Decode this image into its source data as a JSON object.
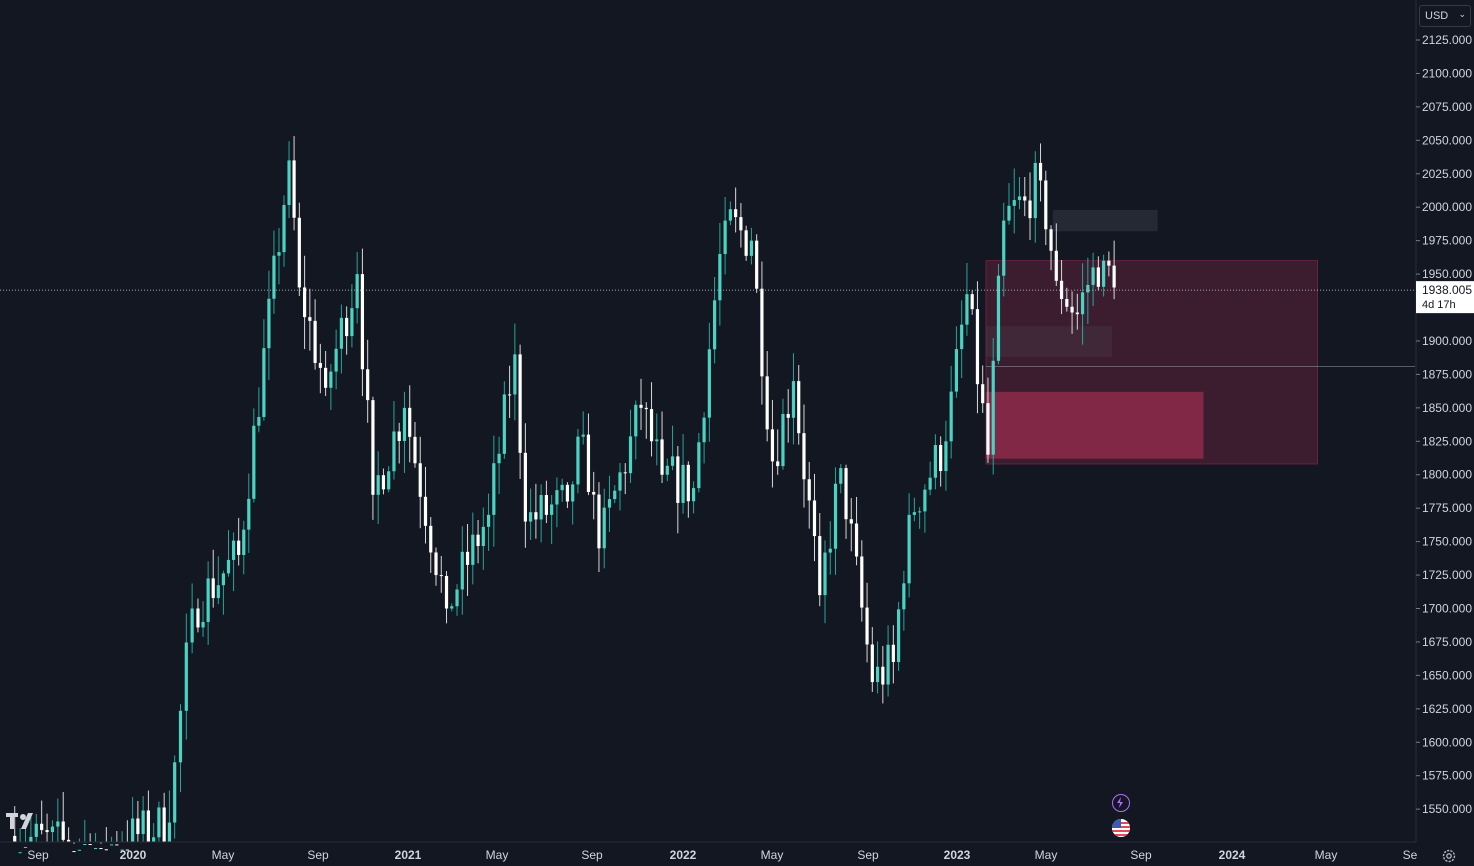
{
  "header": {
    "currency": "USD"
  },
  "price_scale": {
    "tick_labels": [
      "2125.000",
      "2100.000",
      "2075.000",
      "2050.000",
      "2025.000",
      "2000.000",
      "1975.000",
      "1950.000",
      "1925.000",
      "1900.000",
      "1875.000",
      "1850.000",
      "1825.000",
      "1800.000",
      "1775.000",
      "1750.000",
      "1725.000",
      "1700.000",
      "1675.000",
      "1650.000",
      "1625.000",
      "1600.000",
      "1575.000",
      "1550.000"
    ],
    "current_price": "1938.005",
    "countdown": "4d 17h"
  },
  "time_scale": {
    "tick_labels": [
      {
        "label": "Sep",
        "bold": false
      },
      {
        "label": "2020",
        "bold": true
      },
      {
        "label": "May",
        "bold": false
      },
      {
        "label": "Sep",
        "bold": false
      },
      {
        "label": "2021",
        "bold": true
      },
      {
        "label": "May",
        "bold": false
      },
      {
        "label": "Sep",
        "bold": false
      },
      {
        "label": "2022",
        "bold": true
      },
      {
        "label": "May",
        "bold": false
      },
      {
        "label": "Sep",
        "bold": false
      },
      {
        "label": "2023",
        "bold": true
      },
      {
        "label": "May",
        "bold": false
      },
      {
        "label": "Sep",
        "bold": false
      },
      {
        "label": "2024",
        "bold": true
      },
      {
        "label": "May",
        "bold": false
      },
      {
        "label": "Se",
        "bold": false
      }
    ]
  },
  "icons": {
    "logo": "tradingview-logo-icon",
    "events": [
      "lightning-event-icon",
      "us-flag-event-icon"
    ],
    "settings": "settings-gear-icon"
  },
  "colors": {
    "background": "#131722",
    "up": "#26a69a",
    "up_body": "#4ad3c2",
    "down": "#ffffff",
    "zone": "#f23b6d",
    "text": "#d1d4dc"
  },
  "chart_data": {
    "type": "candlestick",
    "timeframe": "weekly",
    "ylim": [
      1535,
      2135
    ],
    "x_ticks": [
      "Sep",
      "2020",
      "May",
      "Sep",
      "2021",
      "May",
      "Sep",
      "2022",
      "May",
      "Sep",
      "2023",
      "May",
      "Sep",
      "2024",
      "May",
      "Se"
    ],
    "y_ticks": [
      2125,
      2100,
      2075,
      2050,
      2025,
      2000,
      1975,
      1950,
      1925,
      1900,
      1875,
      1850,
      1825,
      1800,
      1775,
      1750,
      1725,
      1700,
      1675,
      1650,
      1625,
      1600,
      1575,
      1550
    ],
    "last_price": 1938.005,
    "key_closes": [
      [
        "2019-08",
        1530
      ],
      [
        "2019-12",
        1520
      ],
      [
        "2020-03",
        1540
      ],
      [
        "2020-04",
        1700
      ],
      [
        "2020-06",
        1740
      ],
      [
        "2020-08-07",
        2035
      ],
      [
        "2020-08-21",
        1940
      ],
      [
        "2020-09-25",
        1865
      ],
      [
        "2020-11-06",
        1950
      ],
      [
        "2020-11-27",
        1785
      ],
      [
        "2021-01-08",
        1850
      ],
      [
        "2021-03-05",
        1700
      ],
      [
        "2021-04-30",
        1770
      ],
      [
        "2021-06-04",
        1890
      ],
      [
        "2021-06-18",
        1765
      ],
      [
        "2021-08-13",
        1780
      ],
      [
        "2021-09-03",
        1830
      ],
      [
        "2021-09-24",
        1745
      ],
      [
        "2021-11-19",
        1850
      ],
      [
        "2021-12-17",
        1800
      ],
      [
        "2022-01-28",
        1790
      ],
      [
        "2022-03-04",
        1965
      ],
      [
        "2022-03-11",
        1990
      ],
      [
        "2022-04-15",
        1975
      ],
      [
        "2022-05-13",
        1810
      ],
      [
        "2022-06-10",
        1870
      ],
      [
        "2022-07-15",
        1710
      ],
      [
        "2022-08-12",
        1805
      ],
      [
        "2022-09-23",
        1645
      ],
      [
        "2022-10-21",
        1660
      ],
      [
        "2022-11-11",
        1770
      ],
      [
        "2022-12-30",
        1825
      ],
      [
        "2023-01-27",
        1935
      ],
      [
        "2023-02-24",
        1815
      ],
      [
        "2023-03-17",
        1990
      ],
      [
        "2023-04-14",
        2005
      ],
      [
        "2023-05-05",
        2020
      ],
      [
        "2023-05-26",
        1945
      ],
      [
        "2023-06-23",
        1920
      ],
      [
        "2023-07-14",
        1955
      ],
      [
        "2023-07-28",
        1960
      ],
      [
        "2023-08-11",
        1940
      ]
    ],
    "zones": [
      {
        "label": "",
        "from": "2023-02",
        "to": "2024-05",
        "low": 1808,
        "high": 1960
      },
      {
        "label": "",
        "from": "2023-02",
        "to": "2023-12",
        "low": 1812,
        "high": 1862
      },
      {
        "label": "",
        "from": "2023-02",
        "to": "2023-08",
        "low": 1888,
        "high": 1911
      },
      {
        "label": "",
        "from": "2023-05",
        "to": "2023-10",
        "low": 1982,
        "high": 1998
      }
    ]
  }
}
